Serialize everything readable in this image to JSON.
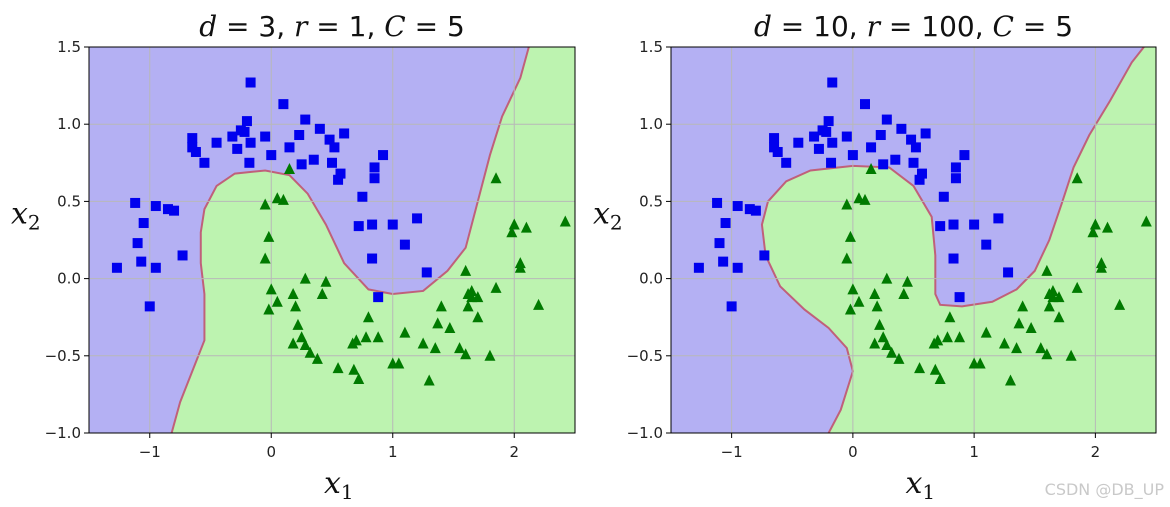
{
  "watermark": "CSDN @DB_UP",
  "colors": {
    "region_class0": "#b4b0f3",
    "region_class1": "#bdf3b0",
    "boundary": "#c0607a",
    "class0_marker": "#0000ee",
    "class1_marker": "#007a00",
    "grid": "#b8b8b8"
  },
  "chart_data": [
    {
      "type": "scatter",
      "title_parts": {
        "d": "3",
        "r": "1",
        "C": "5"
      },
      "xlabel": "x1",
      "ylabel": "x2",
      "xlim": [
        -1.5,
        2.5
      ],
      "ylim": [
        -1.0,
        1.5
      ],
      "x_ticks": [
        "−1",
        "0",
        "1",
        "2"
      ],
      "y_ticks": [
        "1.5",
        "1.0",
        "0.5",
        "0.0",
        "−0.5",
        "−1.0"
      ],
      "grid": true,
      "decision_boundary": [
        [
          -0.82,
          -1.0
        ],
        [
          -0.75,
          -0.8
        ],
        [
          -0.65,
          -0.6
        ],
        [
          -0.55,
          -0.4
        ],
        [
          -0.55,
          -0.1
        ],
        [
          -0.58,
          0.1
        ],
        [
          -0.58,
          0.3
        ],
        [
          -0.55,
          0.45
        ],
        [
          -0.45,
          0.6
        ],
        [
          -0.3,
          0.68
        ],
        [
          -0.05,
          0.7
        ],
        [
          0.15,
          0.67
        ],
        [
          0.3,
          0.55
        ],
        [
          0.45,
          0.35
        ],
        [
          0.6,
          0.1
        ],
        [
          0.8,
          -0.07
        ],
        [
          1.0,
          -0.1
        ],
        [
          1.25,
          -0.08
        ],
        [
          1.45,
          0.05
        ],
        [
          1.6,
          0.2
        ],
        [
          1.7,
          0.5
        ],
        [
          1.8,
          0.8
        ],
        [
          1.9,
          1.05
        ],
        [
          2.05,
          1.3
        ],
        [
          2.12,
          1.5
        ]
      ],
      "series": [
        {
          "label": "class0",
          "marker": "square",
          "points": [
            [
              -1.27,
              0.07
            ],
            [
              -1.12,
              0.49
            ],
            [
              -1.1,
              0.23
            ],
            [
              -1.05,
              0.36
            ],
            [
              -1.07,
              0.11
            ],
            [
              -1.0,
              -0.18
            ],
            [
              -0.95,
              0.47
            ],
            [
              -0.95,
              0.07
            ],
            [
              -0.85,
              0.45
            ],
            [
              -0.8,
              0.44
            ],
            [
              -0.73,
              0.15
            ],
            [
              -0.65,
              0.85
            ],
            [
              -0.65,
              0.91
            ],
            [
              -0.62,
              0.82
            ],
            [
              -0.55,
              0.75
            ],
            [
              -0.45,
              0.88
            ],
            [
              -0.32,
              0.92
            ],
            [
              -0.28,
              0.84
            ],
            [
              -0.25,
              0.96
            ],
            [
              -0.22,
              0.95
            ],
            [
              -0.2,
              1.02
            ],
            [
              -0.18,
              0.75
            ],
            [
              -0.17,
              0.88
            ],
            [
              -0.17,
              1.27
            ],
            [
              -0.05,
              0.92
            ],
            [
              0.0,
              0.8
            ],
            [
              0.1,
              1.13
            ],
            [
              0.15,
              0.85
            ],
            [
              0.25,
              0.74
            ],
            [
              0.23,
              0.93
            ],
            [
              0.28,
              1.03
            ],
            [
              0.35,
              0.77
            ],
            [
              0.4,
              0.97
            ],
            [
              0.48,
              0.9
            ],
            [
              0.5,
              0.75
            ],
            [
              0.52,
              0.85
            ],
            [
              0.6,
              0.94
            ],
            [
              0.55,
              0.64
            ],
            [
              0.57,
              0.68
            ],
            [
              0.75,
              0.53
            ],
            [
              0.72,
              0.34
            ],
            [
              0.83,
              0.35
            ],
            [
              0.83,
              0.13
            ],
            [
              0.85,
              0.65
            ],
            [
              0.85,
              0.72
            ],
            [
              0.92,
              0.8
            ],
            [
              1.0,
              0.35
            ],
            [
              1.1,
              0.22
            ],
            [
              1.2,
              0.39
            ],
            [
              1.28,
              0.04
            ],
            [
              0.88,
              -0.12
            ]
          ]
        },
        {
          "label": "class1",
          "marker": "triangle",
          "points": [
            [
              0.15,
              0.71
            ],
            [
              -0.05,
              0.48
            ],
            [
              0.05,
              0.52
            ],
            [
              0.1,
              0.51
            ],
            [
              -0.02,
              0.27
            ],
            [
              -0.05,
              0.13
            ],
            [
              0.0,
              -0.07
            ],
            [
              0.05,
              -0.15
            ],
            [
              -0.02,
              -0.2
            ],
            [
              0.18,
              -0.1
            ],
            [
              0.2,
              -0.18
            ],
            [
              0.22,
              -0.3
            ],
            [
              0.18,
              -0.42
            ],
            [
              0.28,
              -0.43
            ],
            [
              0.32,
              -0.48
            ],
            [
              0.25,
              -0.38
            ],
            [
              0.28,
              0.0
            ],
            [
              0.38,
              -0.52
            ],
            [
              0.42,
              -0.1
            ],
            [
              0.45,
              -0.02
            ],
            [
              0.55,
              -0.58
            ],
            [
              0.67,
              -0.42
            ],
            [
              0.7,
              -0.4
            ],
            [
              0.68,
              -0.59
            ],
            [
              0.72,
              -0.65
            ],
            [
              0.78,
              -0.38
            ],
            [
              0.8,
              -0.25
            ],
            [
              0.88,
              -0.38
            ],
            [
              1.0,
              -0.55
            ],
            [
              1.05,
              -0.55
            ],
            [
              1.1,
              -0.35
            ],
            [
              1.25,
              -0.42
            ],
            [
              1.3,
              -0.66
            ],
            [
              1.35,
              -0.45
            ],
            [
              1.37,
              -0.29
            ],
            [
              1.4,
              -0.18
            ],
            [
              1.47,
              -0.32
            ],
            [
              1.55,
              -0.45
            ],
            [
              1.6,
              -0.49
            ],
            [
              1.62,
              -0.1
            ],
            [
              1.6,
              0.05
            ],
            [
              1.65,
              -0.08
            ],
            [
              1.65,
              -0.12
            ],
            [
              1.62,
              -0.18
            ],
            [
              1.7,
              -0.12
            ],
            [
              1.7,
              -0.25
            ],
            [
              1.8,
              -0.5
            ],
            [
              1.85,
              -0.06
            ],
            [
              1.85,
              0.65
            ],
            [
              1.98,
              0.3
            ],
            [
              2.0,
              0.35
            ],
            [
              2.05,
              0.07
            ],
            [
              2.05,
              0.1
            ],
            [
              2.1,
              0.33
            ],
            [
              2.2,
              -0.17
            ],
            [
              2.42,
              0.37
            ]
          ]
        }
      ]
    },
    {
      "type": "scatter",
      "title_parts": {
        "d": "10",
        "r": "100",
        "C": "5"
      },
      "xlabel": "x1",
      "ylabel": "x2",
      "xlim": [
        -1.5,
        2.5
      ],
      "ylim": [
        -1.0,
        1.5
      ],
      "x_ticks": [
        "−1",
        "0",
        "1",
        "2"
      ],
      "y_ticks": [
        "1.5",
        "1.0",
        "0.5",
        "0.0",
        "−0.5",
        "−1.0"
      ],
      "grid": true,
      "decision_boundary": [
        [
          -0.2,
          -1.0
        ],
        [
          -0.1,
          -0.85
        ],
        [
          0.0,
          -0.6
        ],
        [
          -0.05,
          -0.45
        ],
        [
          -0.2,
          -0.32
        ],
        [
          -0.4,
          -0.2
        ],
        [
          -0.6,
          -0.05
        ],
        [
          -0.72,
          0.15
        ],
        [
          -0.75,
          0.35
        ],
        [
          -0.7,
          0.5
        ],
        [
          -0.55,
          0.63
        ],
        [
          -0.35,
          0.7
        ],
        [
          0.0,
          0.73
        ],
        [
          0.3,
          0.72
        ],
        [
          0.5,
          0.6
        ],
        [
          0.65,
          0.4
        ],
        [
          0.68,
          0.15
        ],
        [
          0.68,
          -0.1
        ],
        [
          0.72,
          -0.17
        ],
        [
          0.9,
          -0.18
        ],
        [
          1.15,
          -0.15
        ],
        [
          1.35,
          -0.07
        ],
        [
          1.5,
          0.05
        ],
        [
          1.62,
          0.25
        ],
        [
          1.72,
          0.48
        ],
        [
          1.82,
          0.72
        ],
        [
          1.95,
          0.93
        ],
        [
          2.12,
          1.15
        ],
        [
          2.3,
          1.4
        ],
        [
          2.4,
          1.5
        ]
      ],
      "series": [
        {
          "label": "class0",
          "marker": "square",
          "points": [
            [
              -1.27,
              0.07
            ],
            [
              -1.12,
              0.49
            ],
            [
              -1.1,
              0.23
            ],
            [
              -1.05,
              0.36
            ],
            [
              -1.07,
              0.11
            ],
            [
              -1.0,
              -0.18
            ],
            [
              -0.95,
              0.47
            ],
            [
              -0.95,
              0.07
            ],
            [
              -0.85,
              0.45
            ],
            [
              -0.8,
              0.44
            ],
            [
              -0.73,
              0.15
            ],
            [
              -0.65,
              0.85
            ],
            [
              -0.65,
              0.91
            ],
            [
              -0.62,
              0.82
            ],
            [
              -0.55,
              0.75
            ],
            [
              -0.45,
              0.88
            ],
            [
              -0.32,
              0.92
            ],
            [
              -0.28,
              0.84
            ],
            [
              -0.25,
              0.96
            ],
            [
              -0.22,
              0.95
            ],
            [
              -0.2,
              1.02
            ],
            [
              -0.18,
              0.75
            ],
            [
              -0.17,
              0.88
            ],
            [
              -0.17,
              1.27
            ],
            [
              -0.05,
              0.92
            ],
            [
              0.0,
              0.8
            ],
            [
              0.1,
              1.13
            ],
            [
              0.15,
              0.85
            ],
            [
              0.25,
              0.74
            ],
            [
              0.23,
              0.93
            ],
            [
              0.28,
              1.03
            ],
            [
              0.35,
              0.77
            ],
            [
              0.4,
              0.97
            ],
            [
              0.48,
              0.9
            ],
            [
              0.5,
              0.75
            ],
            [
              0.52,
              0.85
            ],
            [
              0.6,
              0.94
            ],
            [
              0.55,
              0.64
            ],
            [
              0.57,
              0.68
            ],
            [
              0.75,
              0.53
            ],
            [
              0.72,
              0.34
            ],
            [
              0.83,
              0.35
            ],
            [
              0.83,
              0.13
            ],
            [
              0.85,
              0.65
            ],
            [
              0.85,
              0.72
            ],
            [
              0.92,
              0.8
            ],
            [
              1.0,
              0.35
            ],
            [
              1.1,
              0.22
            ],
            [
              1.2,
              0.39
            ],
            [
              1.28,
              0.04
            ],
            [
              0.88,
              -0.12
            ]
          ]
        },
        {
          "label": "class1",
          "marker": "triangle",
          "points": [
            [
              0.15,
              0.71
            ],
            [
              -0.05,
              0.48
            ],
            [
              0.05,
              0.52
            ],
            [
              0.1,
              0.51
            ],
            [
              -0.02,
              0.27
            ],
            [
              -0.05,
              0.13
            ],
            [
              0.0,
              -0.07
            ],
            [
              0.05,
              -0.15
            ],
            [
              -0.02,
              -0.2
            ],
            [
              0.18,
              -0.1
            ],
            [
              0.2,
              -0.18
            ],
            [
              0.22,
              -0.3
            ],
            [
              0.18,
              -0.42
            ],
            [
              0.28,
              -0.43
            ],
            [
              0.32,
              -0.48
            ],
            [
              0.25,
              -0.38
            ],
            [
              0.28,
              0.0
            ],
            [
              0.38,
              -0.52
            ],
            [
              0.42,
              -0.1
            ],
            [
              0.45,
              -0.02
            ],
            [
              0.55,
              -0.58
            ],
            [
              0.67,
              -0.42
            ],
            [
              0.7,
              -0.4
            ],
            [
              0.68,
              -0.59
            ],
            [
              0.72,
              -0.65
            ],
            [
              0.78,
              -0.38
            ],
            [
              0.8,
              -0.25
            ],
            [
              0.88,
              -0.38
            ],
            [
              1.0,
              -0.55
            ],
            [
              1.05,
              -0.55
            ],
            [
              1.1,
              -0.35
            ],
            [
              1.25,
              -0.42
            ],
            [
              1.3,
              -0.66
            ],
            [
              1.35,
              -0.45
            ],
            [
              1.37,
              -0.29
            ],
            [
              1.4,
              -0.18
            ],
            [
              1.47,
              -0.32
            ],
            [
              1.55,
              -0.45
            ],
            [
              1.6,
              -0.49
            ],
            [
              1.62,
              -0.1
            ],
            [
              1.6,
              0.05
            ],
            [
              1.65,
              -0.08
            ],
            [
              1.65,
              -0.12
            ],
            [
              1.62,
              -0.18
            ],
            [
              1.7,
              -0.12
            ],
            [
              1.7,
              -0.25
            ],
            [
              1.8,
              -0.5
            ],
            [
              1.85,
              -0.06
            ],
            [
              1.85,
              0.65
            ],
            [
              1.98,
              0.3
            ],
            [
              2.0,
              0.35
            ],
            [
              2.05,
              0.07
            ],
            [
              2.05,
              0.1
            ],
            [
              2.1,
              0.33
            ],
            [
              2.2,
              -0.17
            ],
            [
              2.42,
              0.37
            ]
          ]
        }
      ]
    }
  ]
}
